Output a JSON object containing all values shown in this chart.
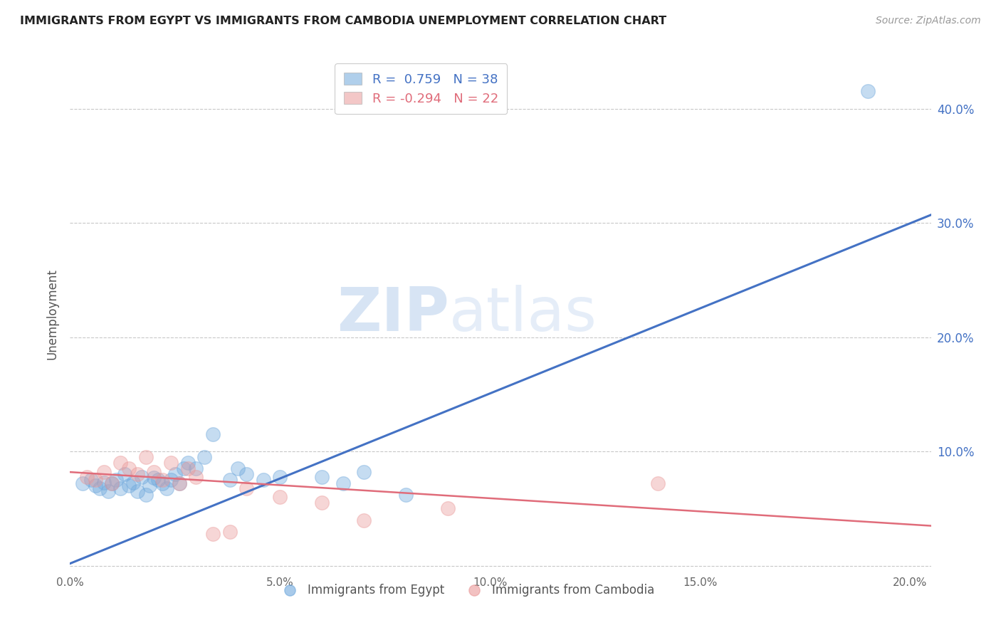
{
  "title": "IMMIGRANTS FROM EGYPT VS IMMIGRANTS FROM CAMBODIA UNEMPLOYMENT CORRELATION CHART",
  "source": "Source: ZipAtlas.com",
  "ylabel": "Unemployment",
  "x_ticks": [
    0.0,
    0.05,
    0.1,
    0.15,
    0.2
  ],
  "y_ticks": [
    0.0,
    0.1,
    0.2,
    0.3,
    0.4
  ],
  "y_tick_labels": [
    "",
    "10.0%",
    "20.0%",
    "30.0%",
    "40.0%"
  ],
  "xlim": [
    0.0,
    0.205
  ],
  "ylim": [
    -0.005,
    0.445
  ],
  "egypt_color": "#6fa8dc",
  "cambodia_color": "#ea9999",
  "egypt_R": 0.759,
  "egypt_N": 38,
  "cambodia_R": -0.294,
  "cambodia_N": 22,
  "legend_label_egypt": "Immigrants from Egypt",
  "legend_label_cambodia": "Immigrants from Cambodia",
  "watermark_zip": "ZIP",
  "watermark_atlas": "atlas",
  "egypt_scatter_x": [
    0.003,
    0.005,
    0.006,
    0.007,
    0.008,
    0.009,
    0.01,
    0.011,
    0.012,
    0.013,
    0.014,
    0.015,
    0.016,
    0.017,
    0.018,
    0.019,
    0.02,
    0.021,
    0.022,
    0.023,
    0.024,
    0.025,
    0.026,
    0.027,
    0.028,
    0.03,
    0.032,
    0.034,
    0.038,
    0.04,
    0.042,
    0.046,
    0.05,
    0.06,
    0.065,
    0.07,
    0.08,
    0.19
  ],
  "egypt_scatter_y": [
    0.072,
    0.075,
    0.07,
    0.068,
    0.073,
    0.065,
    0.072,
    0.075,
    0.068,
    0.08,
    0.07,
    0.073,
    0.065,
    0.078,
    0.062,
    0.07,
    0.077,
    0.075,
    0.072,
    0.068,
    0.075,
    0.08,
    0.072,
    0.085,
    0.09,
    0.085,
    0.095,
    0.115,
    0.075,
    0.085,
    0.08,
    0.075,
    0.078,
    0.078,
    0.072,
    0.082,
    0.062,
    0.415
  ],
  "cambodia_scatter_x": [
    0.004,
    0.006,
    0.008,
    0.01,
    0.012,
    0.014,
    0.016,
    0.018,
    0.02,
    0.022,
    0.024,
    0.026,
    0.028,
    0.03,
    0.034,
    0.038,
    0.042,
    0.05,
    0.06,
    0.07,
    0.09,
    0.14
  ],
  "cambodia_scatter_y": [
    0.078,
    0.075,
    0.082,
    0.072,
    0.09,
    0.085,
    0.08,
    0.095,
    0.082,
    0.075,
    0.09,
    0.072,
    0.085,
    0.078,
    0.028,
    0.03,
    0.068,
    0.06,
    0.055,
    0.04,
    0.05,
    0.072
  ],
  "egypt_line_x": [
    0.0,
    0.205
  ],
  "egypt_line_y": [
    0.002,
    0.307
  ],
  "cambodia_line_x": [
    0.0,
    0.205
  ],
  "cambodia_line_y": [
    0.082,
    0.035
  ],
  "egypt_line_color": "#4472c4",
  "cambodia_line_color": "#e06c7a",
  "background_color": "#ffffff",
  "grid_color": "#c8c8c8"
}
